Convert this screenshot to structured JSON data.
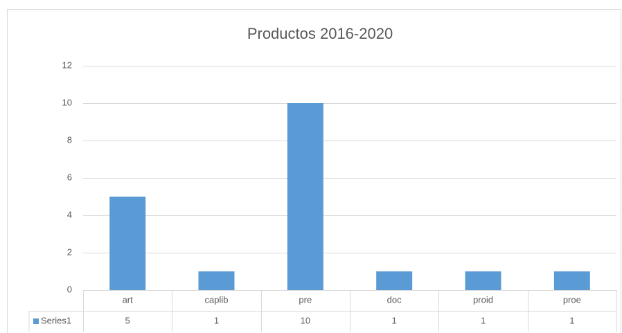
{
  "chart_data": {
    "type": "bar",
    "title": "Productos 2016-2020",
    "categories": [
      "art",
      "caplib",
      "pre",
      "doc",
      "proid",
      "proe"
    ],
    "series": [
      {
        "name": "Series1",
        "color": "#5b9bd5",
        "values": [
          5,
          1,
          10,
          1,
          1,
          1
        ]
      }
    ],
    "ylim": [
      0,
      12
    ],
    "yticks": [
      0,
      2,
      4,
      6,
      8,
      10,
      12
    ],
    "grid": true,
    "data_table": true
  }
}
